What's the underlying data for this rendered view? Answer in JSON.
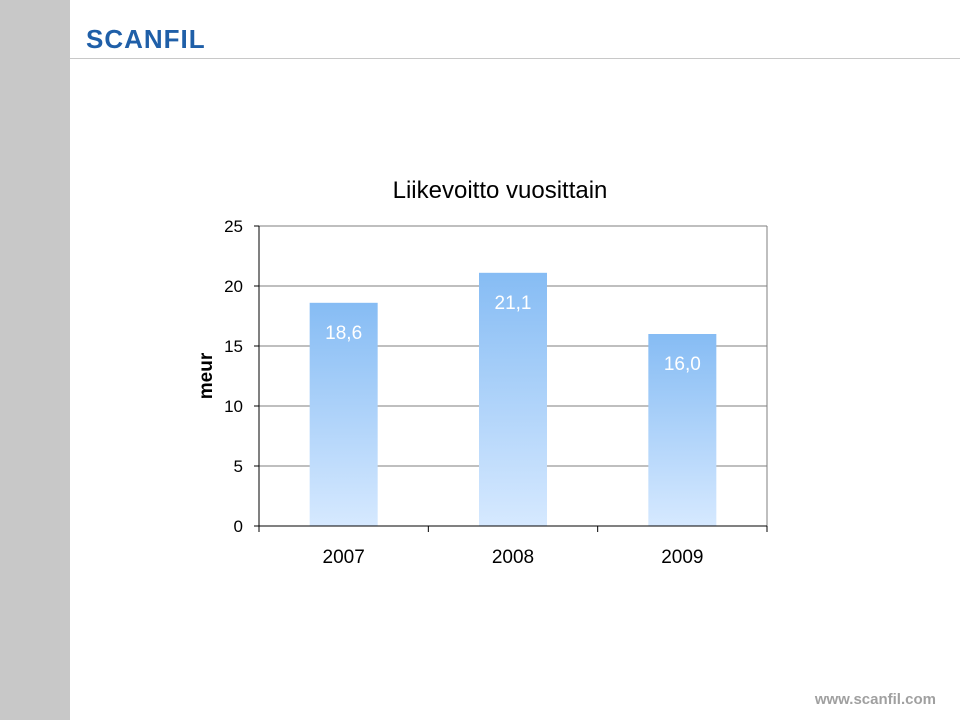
{
  "brand": {
    "logo_text": "SCANFIL",
    "footer_url": "www.scanfil.com"
  },
  "colors": {
    "logo": "#1f5fa8",
    "bar_top": "#86bcf4",
    "bar_bottom": "#d6e9ff",
    "label": "#ffffff"
  },
  "chart_data": {
    "type": "bar",
    "title": "Liikevoitto vuosittain",
    "ylabel": "meur",
    "xlabel": "",
    "categories": [
      "2007",
      "2008",
      "2009"
    ],
    "values": [
      18.6,
      21.1,
      16.0
    ],
    "value_labels": [
      "18,6",
      "21,1",
      "16,0"
    ],
    "ylim": [
      0,
      25
    ],
    "yticks": [
      0,
      5,
      10,
      15,
      20,
      25
    ],
    "grid": true,
    "legend": "none"
  }
}
